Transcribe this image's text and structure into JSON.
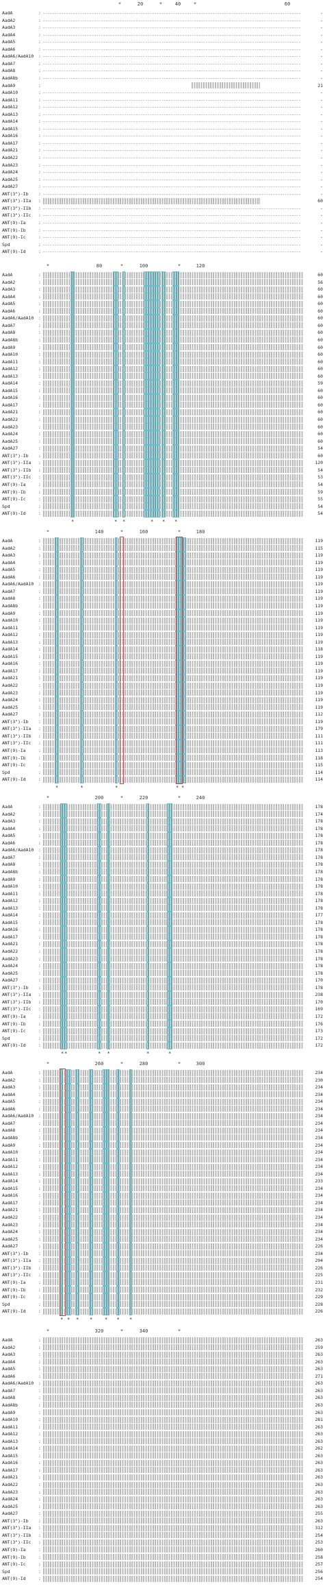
{
  "sequence_names": [
    "AadA",
    "AadA2",
    "AadA3",
    "AadA4",
    "AadA5",
    "AadA6",
    "AadA6/AadA10",
    "AadA7",
    "AadA8",
    "AadA8b",
    "AadA9",
    "AadA10",
    "AadA11",
    "AadA12",
    "AadA13",
    "AadA14",
    "AadA15",
    "AadA16",
    "AadA17",
    "AadA21",
    "AadA22",
    "AadA23",
    "AadA24",
    "AadA25",
    "AadA27",
    "ANT(3\")-Ib",
    "ANT(3\")-IIa",
    "ANT(3\")-IIb",
    "ANT(3\")-IIc",
    "ANT(9)-Ia",
    "ANT(9)-Ib",
    "ANT(9)-Ic",
    "Spd",
    "ANT(9)-Id"
  ],
  "blocks": [
    {
      "ruler": [
        {
          "label": "*"
        },
        {
          "label": "20"
        },
        {
          "label": "*"
        },
        {
          "label": "40"
        },
        {
          "label": "*"
        },
        {
          "label": "60"
        }
      ],
      "end_positions": [
        "-",
        "-",
        "-",
        "-",
        "-",
        "-",
        "-",
        "-",
        "-",
        "-",
        "21",
        "-",
        "-",
        "-",
        "-",
        "-",
        "-",
        "-",
        "-",
        "-",
        "-",
        "-",
        "-",
        "-",
        "-",
        "-",
        "60",
        "-",
        "-",
        "-",
        "-",
        "-",
        "-",
        "-"
      ],
      "conservation": ""
    },
    {
      "ruler": [
        {
          "label": "*"
        },
        {
          "label": "80"
        },
        {
          "label": "*"
        },
        {
          "label": "100"
        },
        {
          "label": "*"
        },
        {
          "label": "120"
        }
      ],
      "end_positions": [
        "60",
        "56",
        "60",
        "60",
        "60",
        "60",
        "60",
        "60",
        "60",
        "60",
        "60",
        "60",
        "60",
        "60",
        "60",
        "59",
        "60",
        "60",
        "60",
        "60",
        "60",
        "60",
        "60",
        "60",
        "54",
        "60",
        "120",
        "54",
        "53",
        "54",
        "59",
        "55",
        "54",
        "54"
      ],
      "conservation": "* * * * *  ** *"
    },
    {
      "ruler": [
        {
          "label": "*"
        },
        {
          "label": "140"
        },
        {
          "label": "*"
        },
        {
          "label": "160"
        },
        {
          "label": "*"
        },
        {
          "label": "180"
        }
      ],
      "end_positions": [
        "119",
        "115",
        "119",
        "119",
        "119",
        "119",
        "119",
        "119",
        "119",
        "119",
        "119",
        "119",
        "119",
        "119",
        "119",
        "118",
        "119",
        "119",
        "119",
        "119",
        "119",
        "119",
        "119",
        "119",
        "112",
        "119",
        "179",
        "111",
        "111",
        "113",
        "118",
        "115",
        "114",
        "114"
      ],
      "conservation": "* * * *  **"
    },
    {
      "ruler": [
        {
          "label": "*"
        },
        {
          "label": "200"
        },
        {
          "label": "*"
        },
        {
          "label": "220"
        },
        {
          "label": "*"
        },
        {
          "label": "240"
        }
      ],
      "end_positions": [
        "178",
        "174",
        "178",
        "178",
        "178",
        "178",
        "178",
        "178",
        "178",
        "178",
        "178",
        "178",
        "178",
        "178",
        "178",
        "177",
        "178",
        "178",
        "178",
        "178",
        "178",
        "178",
        "178",
        "178",
        "170",
        "178",
        "238",
        "170",
        "169",
        "172",
        "176",
        "173",
        "172",
        "172"
      ],
      "conservation": "* * ** * *"
    },
    {
      "ruler": [
        {
          "label": "*"
        },
        {
          "label": "260"
        },
        {
          "label": "*"
        },
        {
          "label": "280"
        },
        {
          "label": "*"
        },
        {
          "label": "300"
        }
      ],
      "end_positions": [
        "234",
        "230",
        "234",
        "234",
        "234",
        "234",
        "234",
        "234",
        "234",
        "234",
        "234",
        "234",
        "234",
        "234",
        "234",
        "233",
        "234",
        "234",
        "234",
        "234",
        "234",
        "234",
        "234",
        "234",
        "226",
        "234",
        "294",
        "226",
        "225",
        "231",
        "232",
        "229",
        "228",
        "226"
      ],
      "conservation": "** * * *"
    },
    {
      "ruler": [
        {
          "label": "*"
        },
        {
          "label": "320"
        },
        {
          "label": "*"
        },
        {
          "label": "340"
        },
        {
          "label": "*"
        }
      ],
      "end_positions": [
        "263",
        "259",
        "263",
        "263",
        "263",
        "271",
        "263",
        "263",
        "263",
        "263",
        "263",
        "281",
        "263",
        "263",
        "263",
        "262",
        "263",
        "263",
        "263",
        "263",
        "263",
        "263",
        "263",
        "263",
        "255",
        "263",
        "312",
        "254",
        "253",
        "260",
        "258",
        "257",
        "256",
        "254"
      ],
      "conservation": ""
    }
  ]
}
